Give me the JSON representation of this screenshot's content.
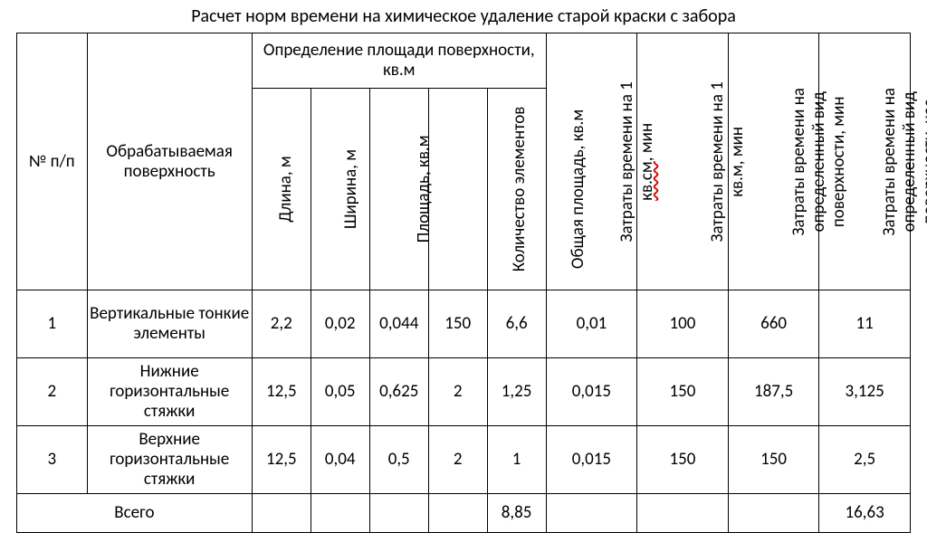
{
  "title": "Расчет норм времени на химическое удаление старой краски с забора",
  "table": {
    "columns": {
      "num": "№ п/п",
      "surface": "Обрабатываемая поверхность",
      "area_group": "Определение площади поверхности, кв.м",
      "length": "Длина, м",
      "width": "Ширина, м",
      "area": "Площадь, кв.м",
      "count": "Количество элементов",
      "total_area": "Общая площадь, кв.м",
      "t_per_cm2_pre": "Затраты времени на 1 ",
      "t_per_cm2_mid": "кв.см",
      "t_per_cm2_post": ", мин",
      "t_per_m2": "Затраты времени на 1 кв.м, мин",
      "t_total_min": "Затраты времени на определенный вид поверхности, мин",
      "t_total_hr": "Затраты времени на определенный вид поверхности, час"
    },
    "rows": [
      {
        "num": "1",
        "surface": "Вертикальные тонкие элементы",
        "length": "2,2",
        "width": "0,02",
        "area": "0,044",
        "count": "150",
        "total_area": "6,6",
        "t_per_cm2": "0,01",
        "t_per_m2": "100",
        "t_total_min": "660",
        "t_total_hr": "11"
      },
      {
        "num": "2",
        "surface": "Нижние горизонтальные стяжки",
        "length": "12,5",
        "width": "0,05",
        "area": "0,625",
        "count": "2",
        "total_area": "1,25",
        "t_per_cm2": "0,015",
        "t_per_m2": "150",
        "t_total_min": "187,5",
        "t_total_hr": "3,125"
      },
      {
        "num": "3",
        "surface": "Верхние горизонтальные стяжки",
        "length": "12,5",
        "width": "0,04",
        "area": "0,5",
        "count": "2",
        "total_area": "1",
        "t_per_cm2": "0,015",
        "t_per_m2": "150",
        "t_total_min": "150",
        "t_total_hr": "2,5"
      }
    ],
    "total": {
      "label": "Всего",
      "total_area": "8,85",
      "t_total_hr": "16,63"
    }
  },
  "style": {
    "background_color": "#ffffff",
    "text_color": "#000000",
    "border_color": "#000000",
    "font_family": "Calibri",
    "title_fontsize": 20,
    "cell_fontsize": 19,
    "squiggle_color": "#d10000"
  }
}
